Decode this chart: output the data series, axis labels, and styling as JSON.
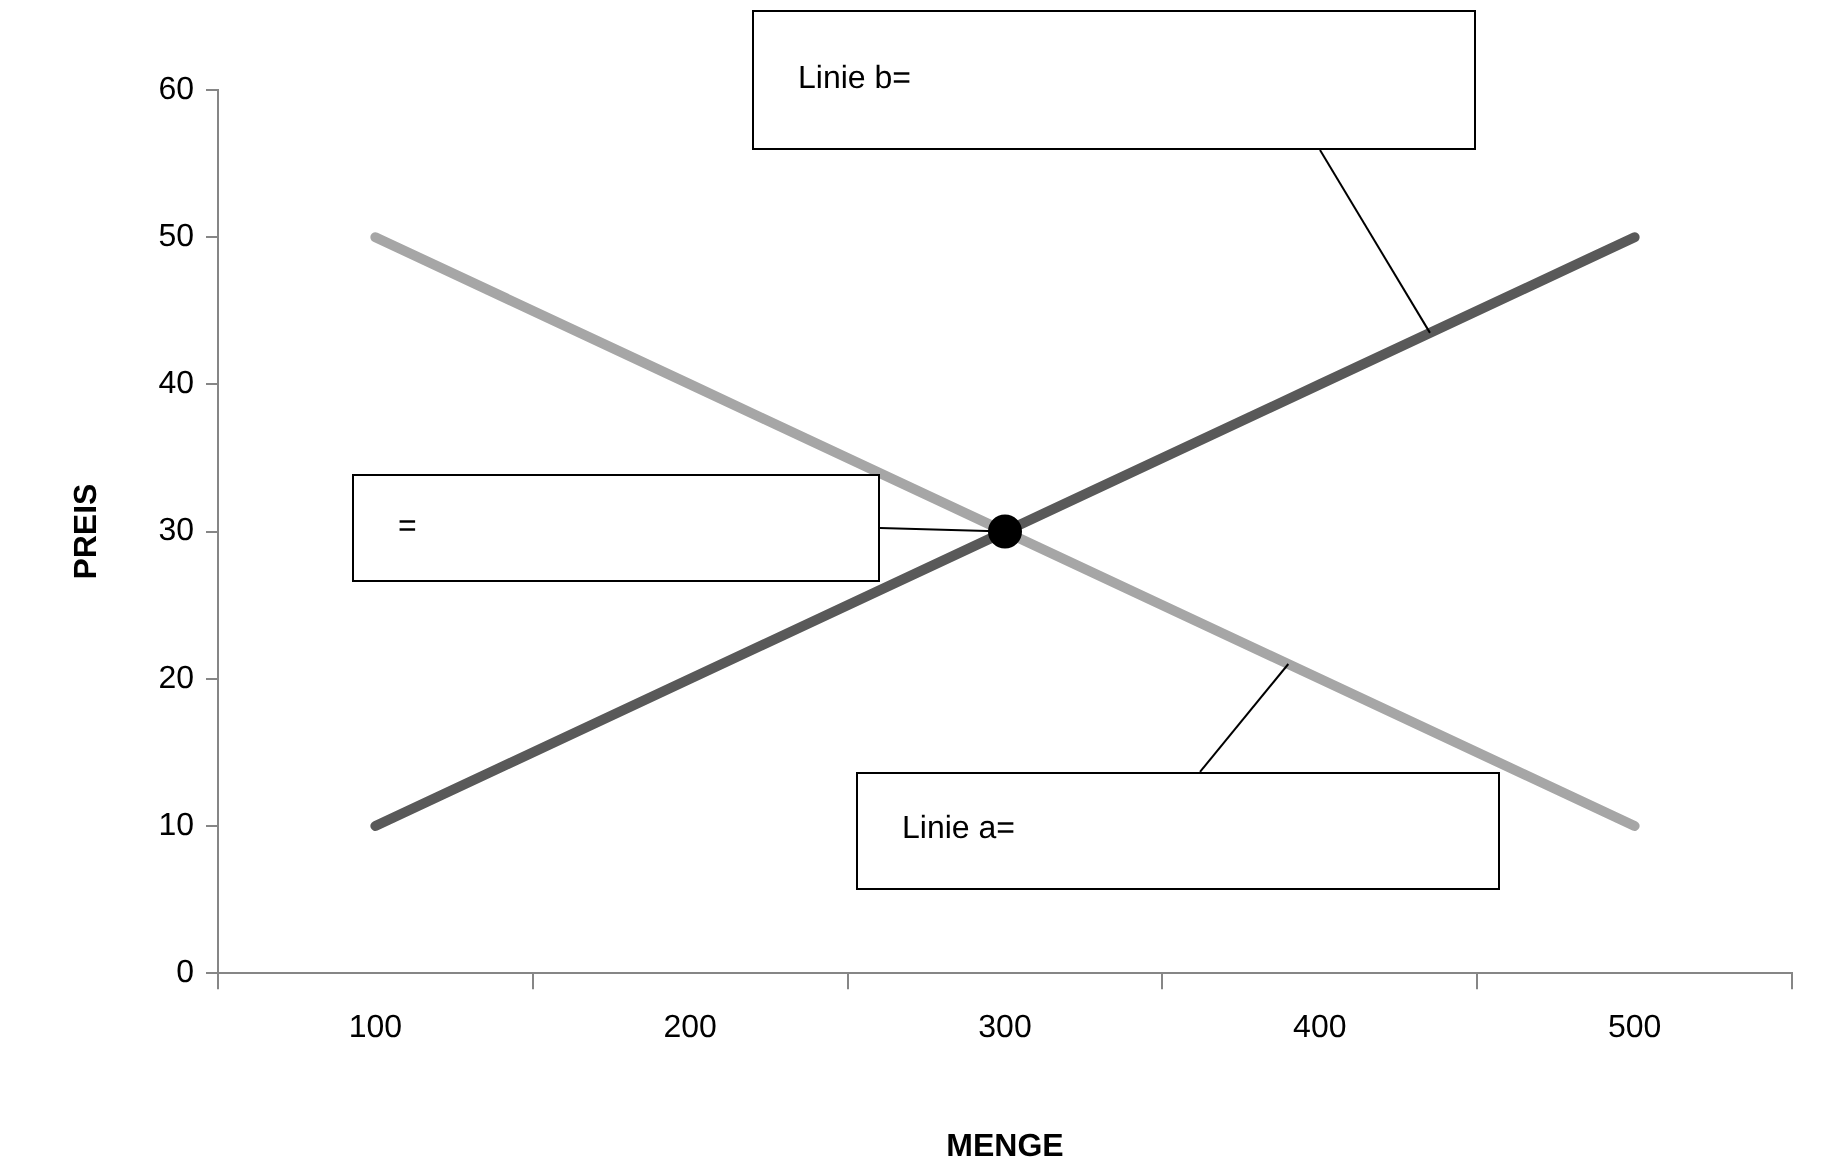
{
  "chart_data": {
    "type": "line",
    "xlabel": "MENGE",
    "ylabel": "PREIS",
    "categories": [
      "100",
      "200",
      "300",
      "400",
      "500"
    ],
    "series": [
      {
        "color": "#a6a6a6",
        "values": [
          50,
          40,
          30,
          20,
          10
        ]
      },
      {
        "color": "#595959",
        "values": [
          10,
          20,
          30,
          40,
          50
        ]
      },
      {
        "type": "scatter",
        "color": "#000000",
        "x": [
          "300"
        ],
        "values": [
          30
        ]
      }
    ],
    "ylim": [
      0,
      60
    ],
    "yticks": [
      0,
      10,
      20,
      30,
      40,
      50,
      60
    ],
    "grid": false,
    "legend": false,
    "annotations": [
      "Linie b=",
      "=",
      "Linie a="
    ]
  }
}
